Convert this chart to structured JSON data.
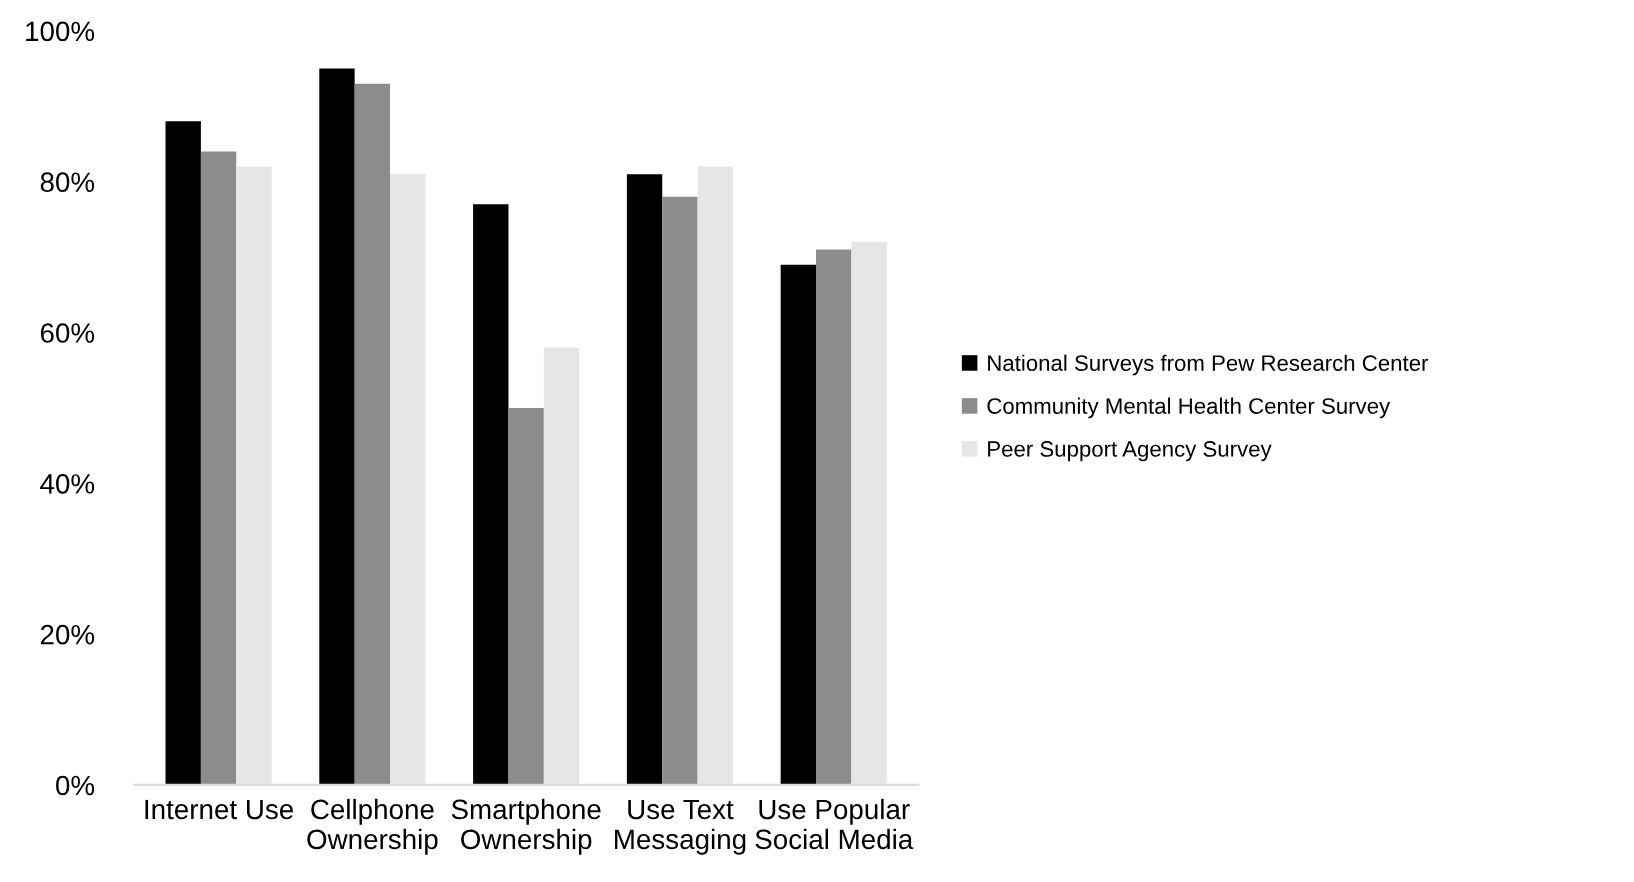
{
  "chart_data": {
    "type": "bar",
    "categories": [
      "Internet Use",
      "Cellphone\nOwnership",
      "Smartphone\nOwnership",
      "Use Text\nMessaging",
      "Use Popular\nSocial Media"
    ],
    "series": [
      {
        "name": "National Surveys from Pew Research Center",
        "color": "#000000",
        "values": [
          88,
          95,
          77,
          81,
          69
        ]
      },
      {
        "name": "Community Mental Health Center Survey",
        "color": "#8c8c8c",
        "values": [
          84,
          93,
          50,
          78,
          71
        ]
      },
      {
        "name": "Peer Support Agency Survey",
        "color": "#e6e6e6",
        "values": [
          82,
          81,
          58,
          82,
          72
        ]
      }
    ],
    "ylim": [
      0,
      100
    ],
    "yticks": [
      {
        "value": 0,
        "label": "0%"
      },
      {
        "value": 20,
        "label": "20%"
      },
      {
        "value": 40,
        "label": "40%"
      },
      {
        "value": 60,
        "label": "60%"
      },
      {
        "value": 80,
        "label": "80%"
      },
      {
        "value": 100,
        "label": "100%"
      }
    ],
    "grid": false,
    "legend": "right"
  }
}
